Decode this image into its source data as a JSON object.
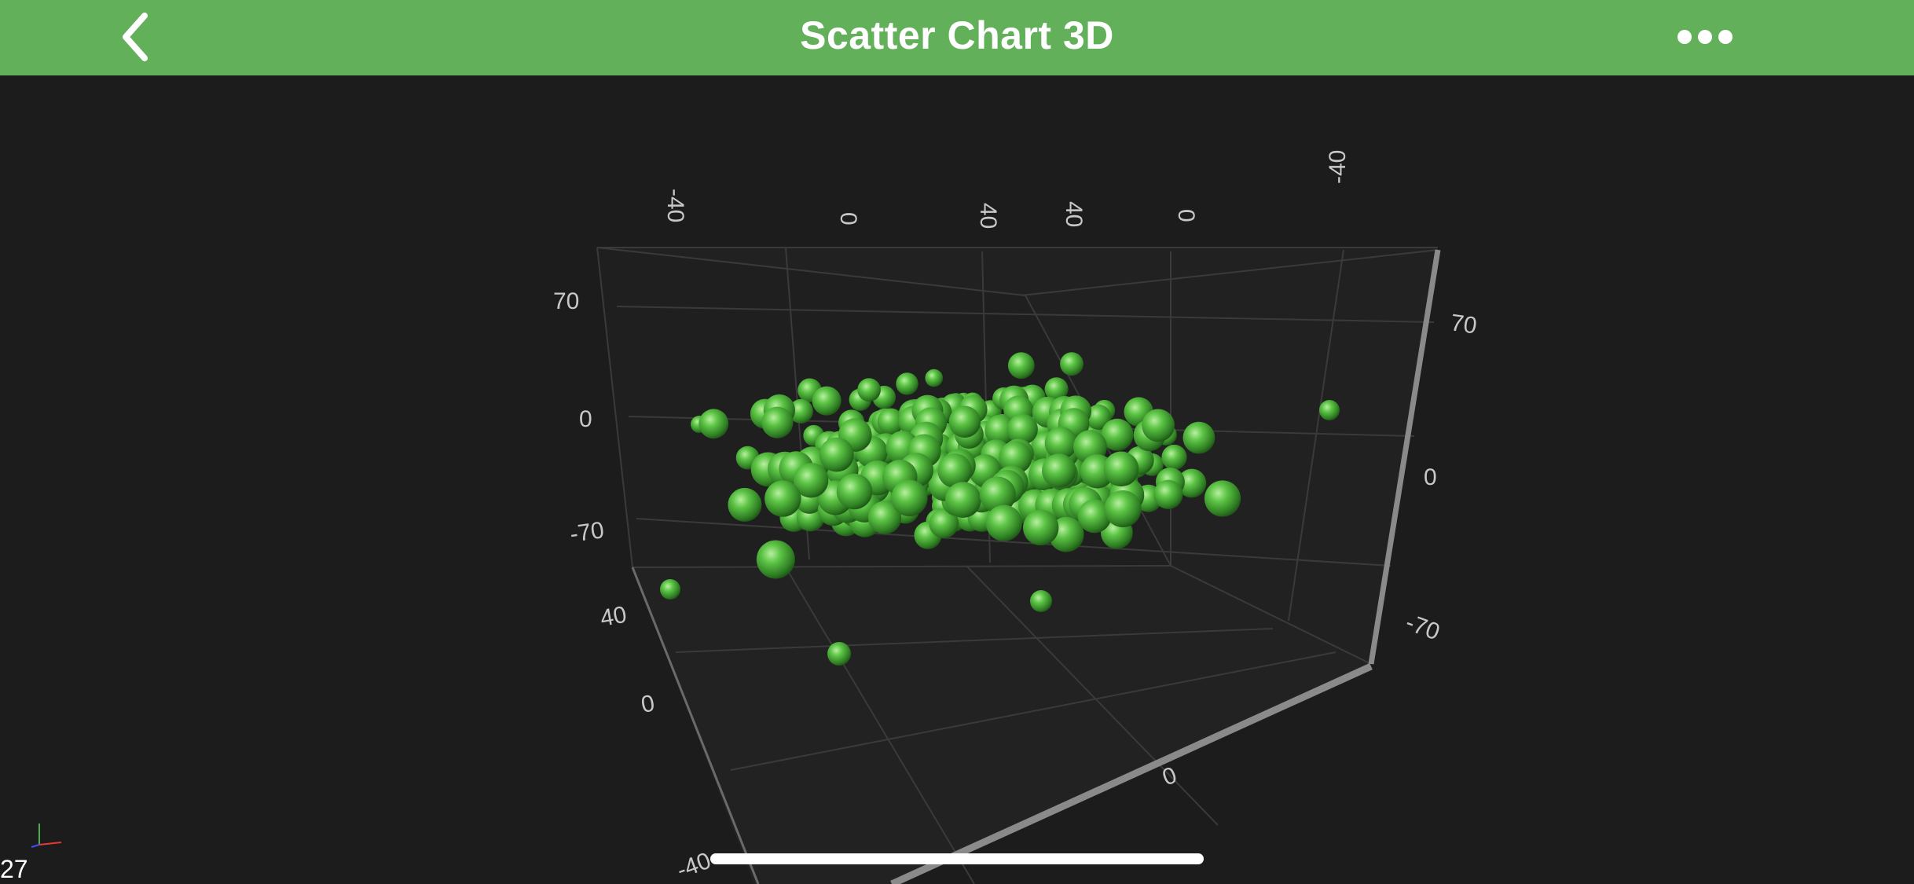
{
  "header": {
    "title": "Scatter Chart 3D",
    "back_icon": "chevron-left-icon",
    "more_icon": "ellipsis-icon"
  },
  "colors": {
    "header_background": "#63b05a",
    "background": "#1c1c1c",
    "marker": "#4fb33f",
    "grid": "#3a3a3a",
    "axis_text": "#c8c8c8"
  },
  "chart_data": {
    "type": "scatter",
    "projection": "3d",
    "marker": "sphere",
    "x_axis": {
      "ticks": [
        "-40",
        "0",
        "40"
      ],
      "range": [
        -60,
        60
      ]
    },
    "y_axis": {
      "ticks": [
        "70",
        "0",
        "-70"
      ],
      "range": [
        -100,
        100
      ]
    },
    "z_axis": {
      "ticks": [
        "40",
        "0",
        "-40"
      ],
      "range": [
        -60,
        60
      ]
    },
    "grid": true,
    "points_note_count": 300
  },
  "overlay": {
    "fps": "27"
  }
}
